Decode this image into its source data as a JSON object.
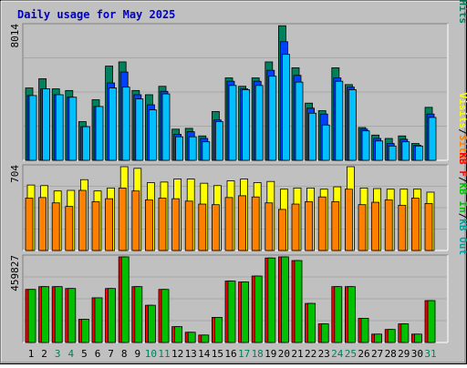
{
  "title": "Daily usage for May 2025",
  "colors": {
    "background": "#c0c0c0",
    "plot_background": "#c0c0c0",
    "title": "#0000c0",
    "hits": "#00805c",
    "files": "#0040ff",
    "pages": "#00c0ff",
    "visits": "#ffff00",
    "sites": "#ff8000",
    "kb_f": "#ff0000",
    "kb_in": "#00c000",
    "kb_out": "#00a0a0"
  },
  "chart_data": [
    {
      "type": "bar",
      "title": "Daily usage for May 2025",
      "categories": [
        "1",
        "2",
        "3",
        "4",
        "5",
        "6",
        "7",
        "8",
        "9",
        "10",
        "11",
        "12",
        "13",
        "14",
        "15",
        "16",
        "17",
        "18",
        "19",
        "20",
        "21",
        "22",
        "23",
        "24",
        "25",
        "26",
        "27",
        "28",
        "29",
        "30",
        "31"
      ],
      "weekend_days": [
        "3",
        "4",
        "10",
        "11",
        "17",
        "18",
        "24",
        "25",
        "31"
      ],
      "ymax_label": "8014",
      "ylim": [
        0,
        8014
      ],
      "right_legend": [
        {
          "text": "Pages",
          "color": "#00c0ff"
        },
        {
          "text": "/",
          "color": "#000000"
        },
        {
          "text": "Files",
          "color": "#0040ff"
        },
        {
          "text": "/",
          "color": "#000000"
        },
        {
          "text": "Hits",
          "color": "#00805c"
        }
      ],
      "series": [
        {
          "name": "Hits",
          "values": [
            4300,
            4850,
            4250,
            4150,
            2300,
            3600,
            5600,
            5850,
            4150,
            3900,
            4400,
            1850,
            1900,
            1450,
            2900,
            4900,
            4400,
            4900,
            5850,
            8000,
            5500,
            3400,
            2950,
            5500,
            4500,
            1950,
            1500,
            1300,
            1450,
            1000,
            3150
          ]
        },
        {
          "name": "Files",
          "values": [
            3850,
            4250,
            3900,
            3750,
            2000,
            3200,
            4600,
            5250,
            3900,
            3300,
            4100,
            1550,
            1700,
            1300,
            2400,
            4700,
            4250,
            4700,
            5350,
            7050,
            5050,
            3100,
            2750,
            4900,
            4350,
            1850,
            1300,
            1000,
            1250,
            900,
            2750
          ]
        },
        {
          "name": "Pages",
          "values": [
            3850,
            4250,
            3900,
            3750,
            2000,
            3200,
            4300,
            4350,
            3650,
            3000,
            3950,
            1400,
            1400,
            1100,
            2300,
            4450,
            4200,
            4450,
            5000,
            6300,
            4650,
            2800,
            2100,
            4700,
            4200,
            1750,
            1150,
            850,
            1100,
            850,
            2550
          ]
        }
      ]
    },
    {
      "type": "bar",
      "ymax_label": "704",
      "ylim": [
        0,
        704
      ],
      "right_legend": [
        {
          "text": "Visits",
          "color": "#ffff00"
        },
        {
          "text": "/",
          "color": "#000000"
        },
        {
          "text": "Sites",
          "color": "#ff8000"
        }
      ],
      "series": [
        {
          "name": "Visits",
          "values": [
            550,
            545,
            500,
            505,
            595,
            500,
            525,
            705,
            690,
            570,
            575,
            600,
            600,
            565,
            545,
            585,
            600,
            570,
            580,
            515,
            525,
            525,
            515,
            535,
            705,
            525,
            520,
            515,
            515,
            515,
            490
          ]
        },
        {
          "name": "Sites",
          "values": [
            440,
            445,
            400,
            370,
            505,
            410,
            435,
            525,
            500,
            425,
            440,
            435,
            415,
            390,
            385,
            445,
            460,
            450,
            400,
            345,
            390,
            410,
            450,
            410,
            515,
            385,
            405,
            425,
            380,
            440,
            395
          ]
        }
      ]
    },
    {
      "type": "bar",
      "ymax_label": "459827",
      "ylim": [
        0,
        459827
      ],
      "right_legend": [
        {
          "text": "KB F",
          "color": "#ff0000"
        },
        {
          "text": "/",
          "color": "#000000"
        },
        {
          "text": "KB In",
          "color": "#00c000"
        },
        {
          "text": "/",
          "color": "#000000"
        },
        {
          "text": "KB Out",
          "color": "#00a0a0"
        }
      ],
      "series": [
        {
          "name": "KB F",
          "values": [
            285000,
            300000,
            300000,
            290000,
            125000,
            240000,
            290000,
            459827,
            300000,
            200000,
            285000,
            85000,
            55000,
            40000,
            135000,
            330000,
            325000,
            357000,
            454000,
            459827,
            440000,
            210000,
            100000,
            300000,
            300000,
            130000,
            45000,
            70000,
            100000,
            45000,
            225000
          ]
        },
        {
          "name": "KB In",
          "values": [
            285000,
            300000,
            300000,
            290000,
            125000,
            240000,
            290000,
            459827,
            300000,
            200000,
            285000,
            85000,
            55000,
            40000,
            135000,
            330000,
            325000,
            357000,
            454000,
            459827,
            440000,
            210000,
            100000,
            300000,
            300000,
            130000,
            45000,
            70000,
            100000,
            45000,
            225000
          ]
        }
      ]
    }
  ]
}
